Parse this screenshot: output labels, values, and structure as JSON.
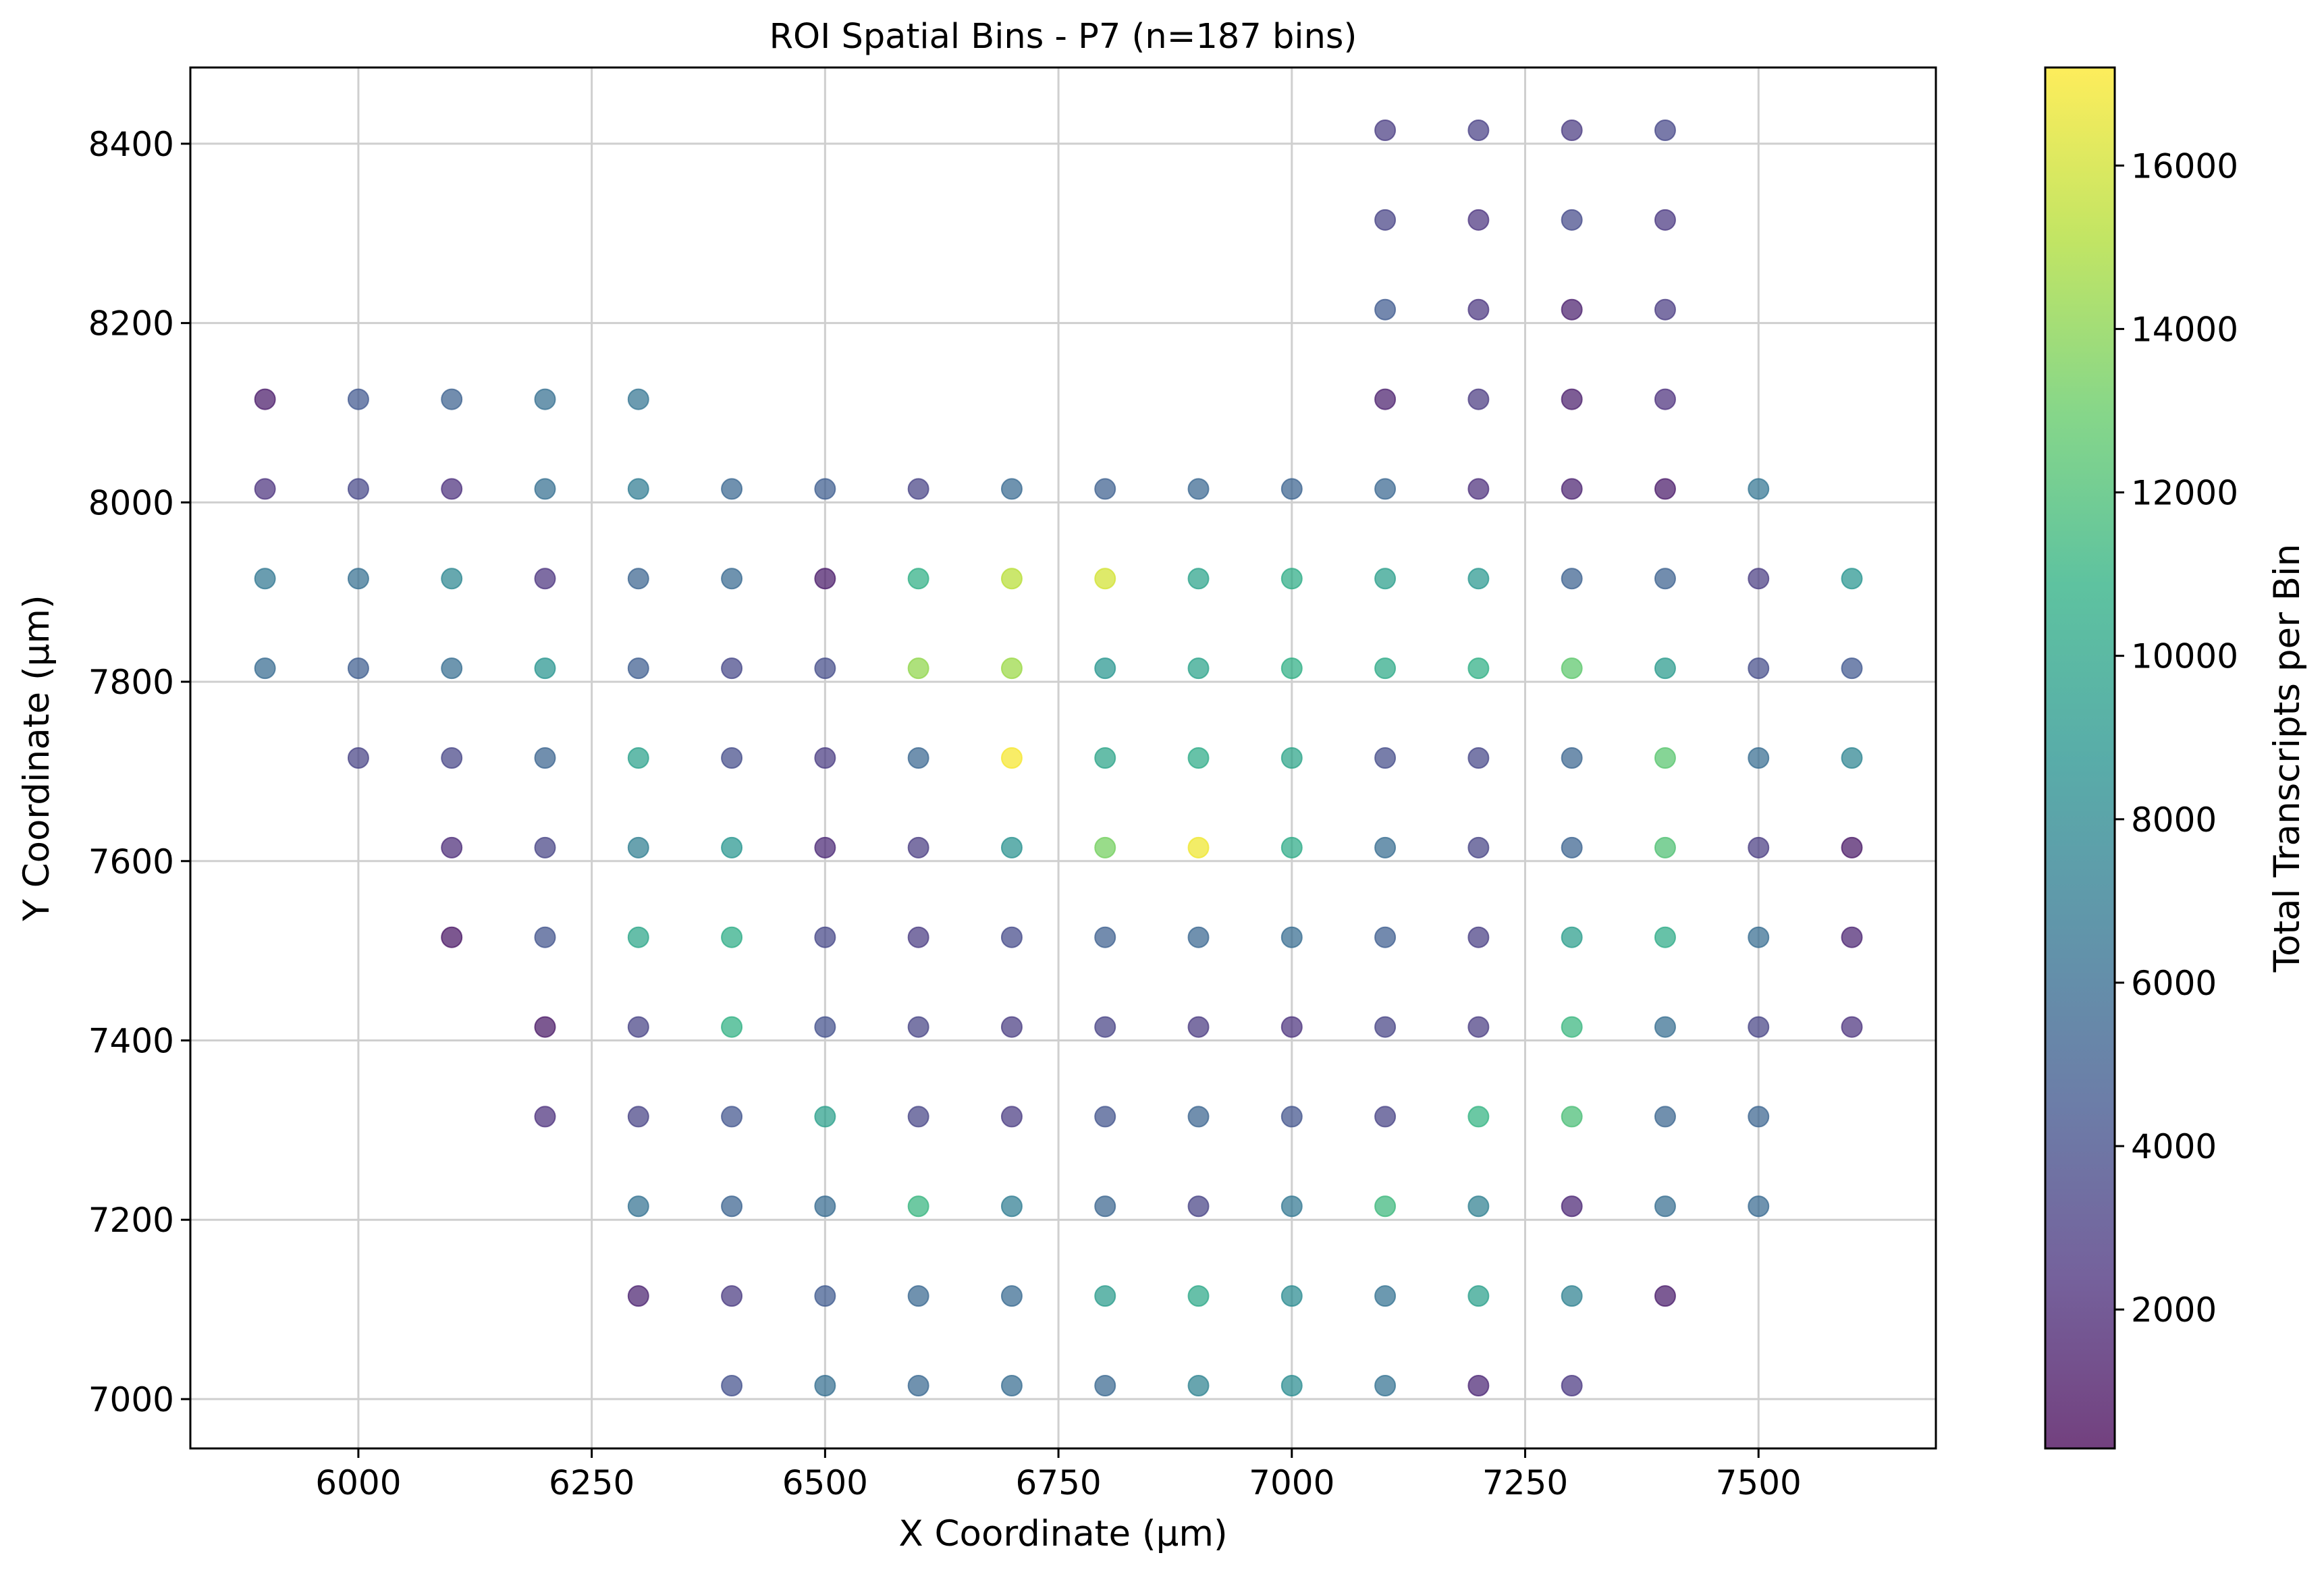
{
  "chart_data": {
    "type": "scatter",
    "title": "ROI Spatial Bins - P7 (n=187 bins)",
    "xlabel": "X Coordinate (µm)",
    "ylabel": "Y Coordinate (µm)",
    "xlim": [
      5820,
      7690
    ],
    "ylim": [
      6945,
      8485
    ],
    "xticks": [
      6000,
      6250,
      6500,
      6750,
      7000,
      7250,
      7500
    ],
    "yticks": [
      7000,
      7200,
      7400,
      7600,
      7800,
      8000,
      8200,
      8400
    ],
    "grid": true,
    "colormap": "viridis",
    "alpha": 0.7,
    "colorbar": {
      "label": "Total Transcripts per Bin",
      "min": 300,
      "max": 17200,
      "ticks": [
        2000,
        4000,
        6000,
        8000,
        10000,
        12000,
        14000,
        16000
      ]
    },
    "columns_x": [
      5900,
      6000,
      6100,
      6200,
      6300,
      6400,
      6500,
      6600,
      6700,
      6800,
      6900,
      7000,
      7100,
      7200,
      7300,
      7400,
      7500,
      7600
    ],
    "row_y": [
      8415,
      8315,
      8215,
      8115,
      8015,
      7915,
      7815,
      7715,
      7615,
      7515,
      7415,
      7315,
      7215,
      7115,
      7015
    ],
    "rows": [
      [
        null,
        null,
        null,
        null,
        null,
        null,
        null,
        null,
        null,
        null,
        null,
        null,
        3000,
        3200,
        2800,
        3600,
        null,
        null
      ],
      [
        null,
        null,
        null,
        null,
        null,
        null,
        null,
        null,
        null,
        null,
        null,
        null,
        3300,
        2500,
        3800,
        2700,
        null,
        null
      ],
      [
        null,
        null,
        null,
        null,
        null,
        null,
        null,
        null,
        null,
        null,
        null,
        null,
        4800,
        2600,
        1500,
        2900,
        null,
        null
      ],
      [
        1200,
        4600,
        5200,
        6200,
        6500,
        null,
        null,
        null,
        null,
        null,
        null,
        null,
        1500,
        2800,
        1400,
        2300,
        null,
        null
      ],
      [
        2400,
        3600,
        2300,
        6200,
        7000,
        5600,
        5000,
        3300,
        5800,
        5100,
        5600,
        5300,
        5600,
        2200,
        1600,
        1200,
        6600,
        null
      ],
      [
        6800,
        6200,
        7800,
        2500,
        5400,
        5800,
        1200,
        10800,
        15300,
        16000,
        9800,
        10600,
        9500,
        9000,
        5200,
        5200,
        3000,
        8800
      ],
      [
        5900,
        5000,
        6100,
        8800,
        4900,
        3600,
        3900,
        14200,
        14500,
        8900,
        9800,
        10800,
        10300,
        10800,
        12700,
        9200,
        3900,
        4600
      ],
      [
        null,
        3300,
        3500,
        5400,
        9700,
        3900,
        2900,
        5600,
        17000,
        9900,
        10400,
        9900,
        3900,
        3600,
        5500,
        12500,
        6000,
        7600
      ],
      [
        null,
        null,
        2100,
        3400,
        7200,
        8900,
        1900,
        3000,
        8600,
        13400,
        16800,
        10400,
        6000,
        3400,
        5300,
        12100,
        3000,
        1100
      ],
      [
        null,
        null,
        1000,
        4300,
        10000,
        10600,
        3600,
        2900,
        3800,
        5100,
        5600,
        6000,
        4900,
        3100,
        9400,
        10400,
        6000,
        1700
      ],
      [
        null,
        null,
        null,
        1100,
        3300,
        10900,
        4200,
        3400,
        3000,
        3300,
        2800,
        2400,
        3400,
        3000,
        11300,
        6100,
        3400,
        2400
      ],
      [
        null,
        null,
        null,
        2300,
        3300,
        4400,
        9600,
        3500,
        2900,
        4300,
        5400,
        4300,
        3300,
        11000,
        11900,
        5500,
        5400,
        null
      ],
      [
        null,
        null,
        null,
        null,
        6300,
        5300,
        5900,
        11200,
        7100,
        5500,
        3300,
        6700,
        11400,
        7300,
        1800,
        6100,
        5800,
        null
      ],
      [
        null,
        null,
        null,
        null,
        1600,
        2800,
        4800,
        5700,
        5800,
        9300,
        10200,
        8100,
        6300,
        9600,
        7400,
        1300,
        null,
        null
      ],
      [
        null,
        null,
        null,
        null,
        null,
        4200,
        6200,
        5700,
        6000,
        5700,
        7500,
        8200,
        6400,
        1800,
        2700,
        null,
        null,
        null
      ]
    ]
  }
}
